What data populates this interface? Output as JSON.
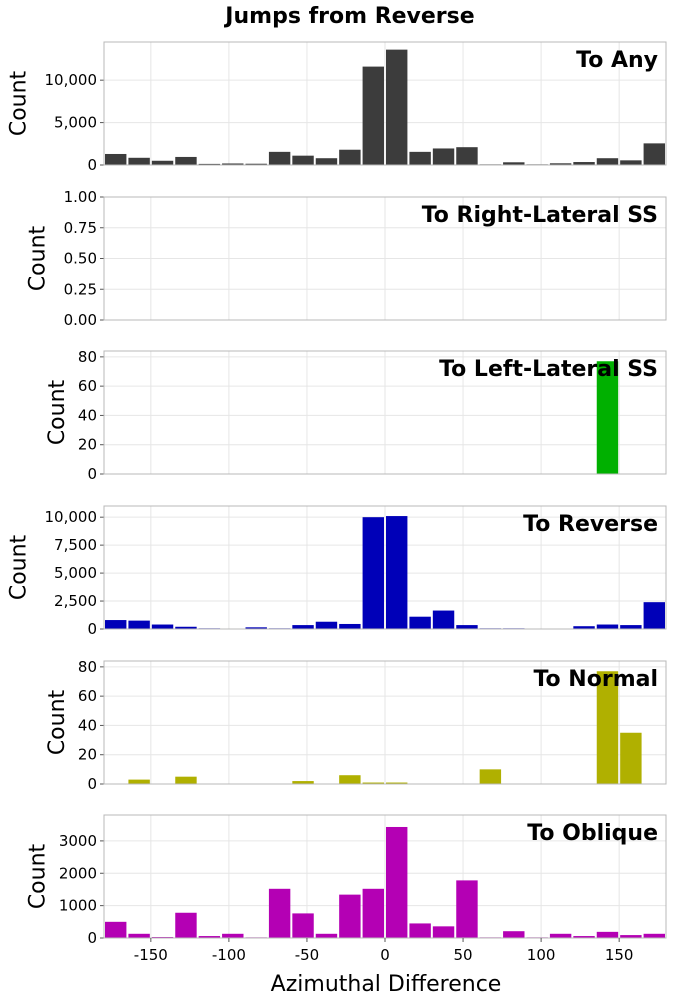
{
  "figure": {
    "title": "Jumps from Reverse",
    "xlabel": "Azimuthal Difference"
  },
  "chart_data": [
    {
      "type": "bar",
      "title": "To Any",
      "color": "#3c3c3c",
      "ylabel": "Count",
      "xlim": [
        -180,
        180
      ],
      "ylim": [
        0,
        14500
      ],
      "bin_width": 15,
      "bin_centers": [
        -172.5,
        -157.5,
        -142.5,
        -127.5,
        -112.5,
        -97.5,
        -82.5,
        -67.5,
        -52.5,
        -37.5,
        -22.5,
        -7.5,
        7.5,
        22.5,
        37.5,
        52.5,
        67.5,
        82.5,
        97.5,
        112.5,
        127.5,
        142.5,
        157.5,
        172.5
      ],
      "values": [
        1300,
        850,
        500,
        950,
        130,
        180,
        150,
        1550,
        1100,
        800,
        1800,
        11600,
        13600,
        1550,
        1950,
        2100,
        80,
        320,
        80,
        200,
        350,
        800,
        550,
        2550
      ],
      "yticks": [
        0,
        5000,
        10000
      ],
      "ytick_labels": [
        "0",
        "5,000",
        "10,000"
      ]
    },
    {
      "type": "bar",
      "title": "To Right-Lateral SS",
      "color": "#cc0000",
      "ylabel": "Count",
      "xlim": [
        -180,
        180
      ],
      "ylim": [
        0,
        1
      ],
      "bin_width": 15,
      "bin_centers": [],
      "values": [],
      "yticks": [
        0,
        0.25,
        0.5,
        0.75,
        1
      ],
      "ytick_labels": [
        "0.00",
        "0.25",
        "0.50",
        "0.75",
        "1.00"
      ]
    },
    {
      "type": "bar",
      "title": "To Left-Lateral SS",
      "color": "#00b000",
      "ylabel": "Count",
      "xlim": [
        -180,
        180
      ],
      "ylim": [
        0,
        84
      ],
      "bin_width": 15,
      "bin_centers": [
        142.5
      ],
      "values": [
        77
      ],
      "yticks": [
        0,
        20,
        40,
        60,
        80
      ],
      "ytick_labels": [
        "0",
        "20",
        "40",
        "60",
        "80"
      ]
    },
    {
      "type": "bar",
      "title": "To Reverse",
      "color": "#0000b8",
      "ylabel": "Count",
      "xlim": [
        -180,
        180
      ],
      "ylim": [
        0,
        11000
      ],
      "bin_width": 15,
      "bin_centers": [
        -172.5,
        -157.5,
        -142.5,
        -127.5,
        -112.5,
        -97.5,
        -82.5,
        -67.5,
        -52.5,
        -37.5,
        -22.5,
        -7.5,
        7.5,
        22.5,
        37.5,
        52.5,
        67.5,
        82.5,
        97.5,
        112.5,
        127.5,
        142.5,
        157.5,
        172.5
      ],
      "values": [
        800,
        750,
        400,
        200,
        60,
        30,
        150,
        60,
        350,
        650,
        450,
        10000,
        10100,
        1100,
        1650,
        350,
        60,
        60,
        30,
        30,
        250,
        400,
        350,
        2400
      ],
      "yticks": [
        0,
        2500,
        5000,
        7500,
        10000
      ],
      "ytick_labels": [
        "0",
        "2,500",
        "5,000",
        "7,500",
        "10,000"
      ]
    },
    {
      "type": "bar",
      "title": "To Normal",
      "color": "#b0b000",
      "ylabel": "Count",
      "xlim": [
        -180,
        180
      ],
      "ylim": [
        0,
        84
      ],
      "bin_width": 15,
      "bin_centers": [
        -157.5,
        -127.5,
        -52.5,
        -22.5,
        -7.5,
        7.5,
        67.5,
        142.5,
        157.5
      ],
      "values": [
        3,
        5,
        2,
        6,
        1,
        1,
        10,
        77,
        35
      ],
      "yticks": [
        0,
        20,
        40,
        60,
        80
      ],
      "ytick_labels": [
        "0",
        "20",
        "40",
        "60",
        "80"
      ]
    },
    {
      "type": "bar",
      "title": "To Oblique",
      "color": "#b400b4",
      "ylabel": "Count",
      "xlim": [
        -180,
        180
      ],
      "ylim": [
        0,
        3800
      ],
      "bin_width": 15,
      "bin_centers": [
        -172.5,
        -157.5,
        -142.5,
        -127.5,
        -112.5,
        -97.5,
        -82.5,
        -67.5,
        -52.5,
        -37.5,
        -22.5,
        -7.5,
        7.5,
        22.5,
        37.5,
        52.5,
        67.5,
        82.5,
        97.5,
        112.5,
        127.5,
        142.5,
        157.5,
        172.5
      ],
      "values": [
        500,
        130,
        30,
        780,
        60,
        130,
        20,
        1520,
        760,
        130,
        1340,
        1520,
        3430,
        450,
        360,
        1780,
        20,
        210,
        20,
        130,
        60,
        190,
        90,
        130
      ],
      "yticks": [
        0,
        1000,
        2000,
        3000
      ],
      "ytick_labels": [
        "0",
        "1000",
        "2000",
        "3000"
      ],
      "xticks": [
        -150,
        -100,
        -50,
        0,
        50,
        100,
        150
      ],
      "xtick_labels": [
        "-150",
        "-100",
        "-50",
        "0",
        "50",
        "100",
        "150"
      ]
    }
  ]
}
